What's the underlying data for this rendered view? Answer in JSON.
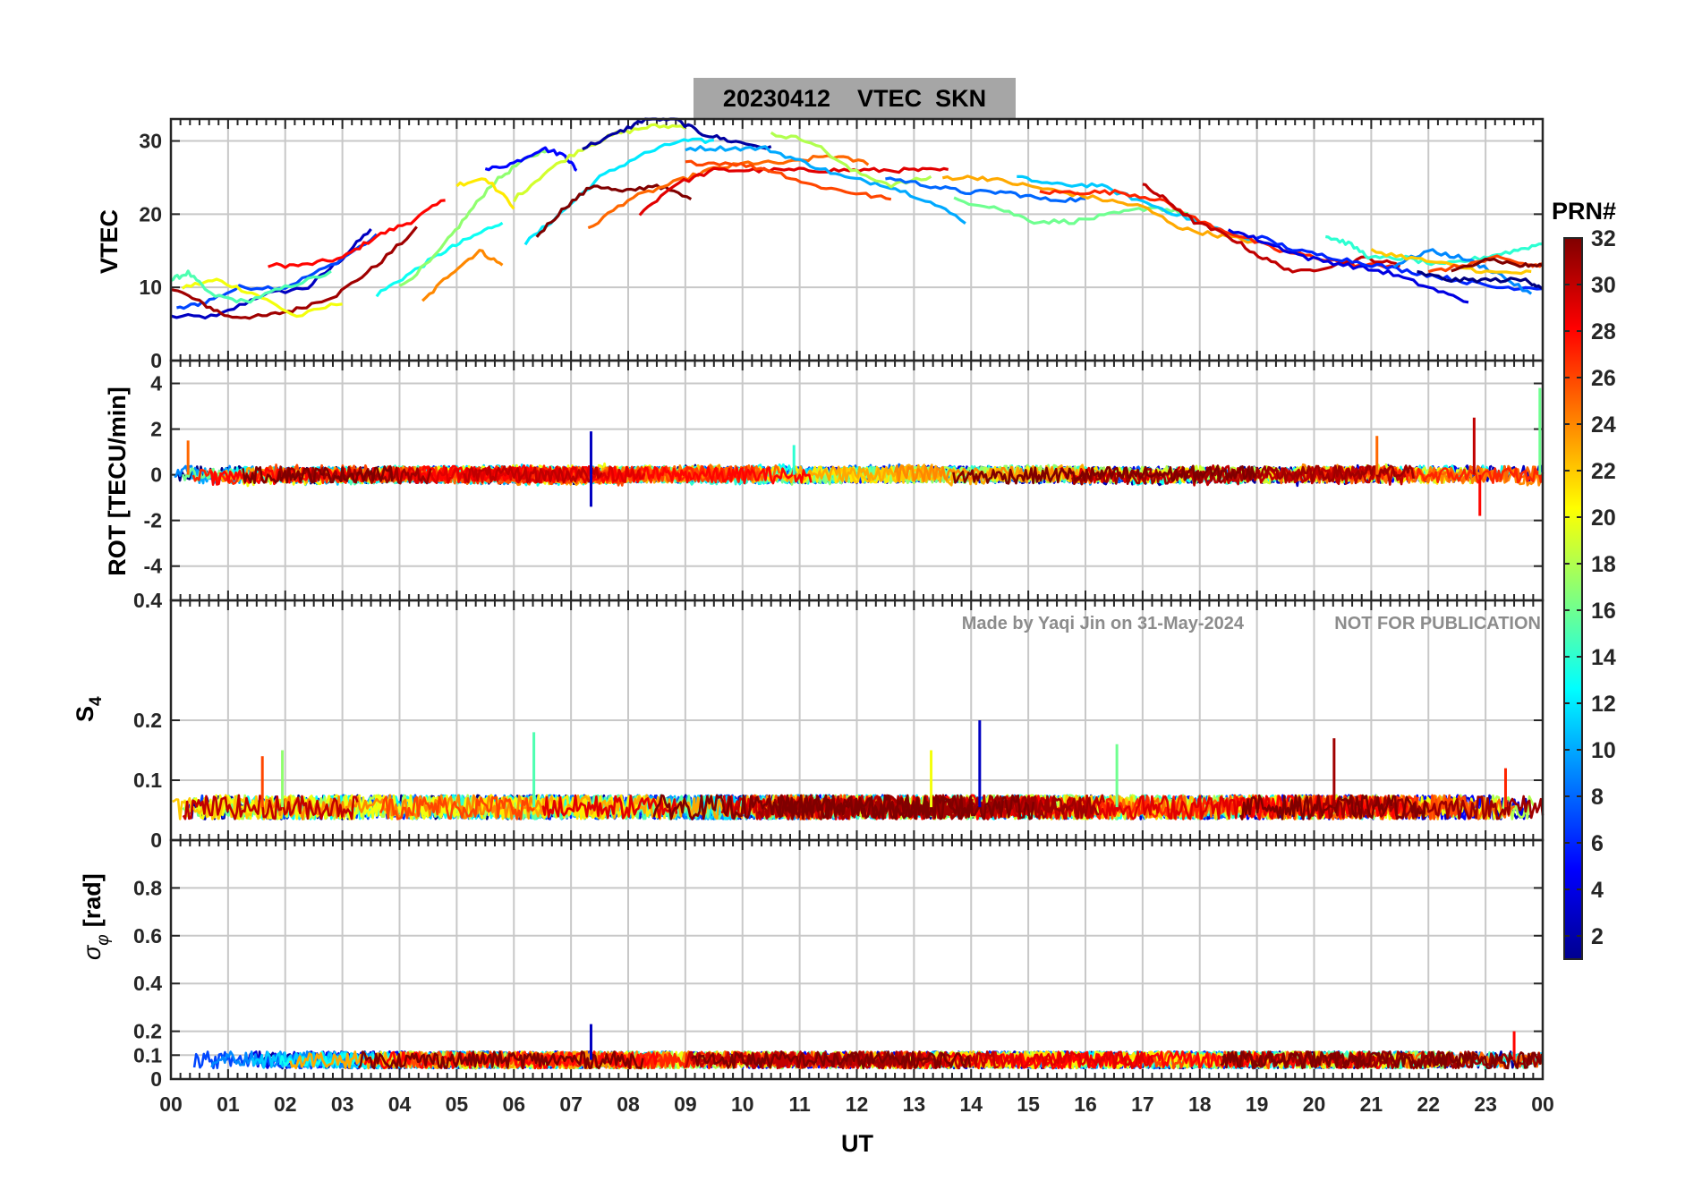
{
  "figure": {
    "title": "20230412    VTEC  SKN",
    "watermark": "Made by Yaqi Jin on 31-May-2024",
    "notice": "NOT FOR PUBLICATION",
    "xlabel": "UT",
    "colors": {
      "title_box": "#a6a6a6",
      "grid": "#c8c8c8",
      "axis": "#262626",
      "watermark": "#8c8c8c"
    }
  },
  "chart_data": [
    {
      "id": "vtec",
      "type": "line",
      "ylabel": "VTEC",
      "ylim": [
        0,
        33
      ],
      "yticks": [
        "0",
        "10",
        "20",
        "30"
      ],
      "ytick_values": [
        0,
        10,
        20,
        30
      ],
      "xlim": [
        0,
        24
      ],
      "xticks": [
        "00",
        "01",
        "02",
        "03",
        "04",
        "05",
        "06",
        "07",
        "08",
        "09",
        "10",
        "11",
        "12",
        "13",
        "14",
        "15",
        "16",
        "17",
        "18",
        "19",
        "20",
        "21",
        "22",
        "23",
        "00"
      ],
      "grid": true,
      "series": [
        {
          "prn": 3,
          "x": [
            0.0,
            0.8,
            1.6,
            2.4,
            3.0,
            3.5
          ],
          "y": [
            6,
            6,
            9,
            10,
            14,
            18
          ]
        },
        {
          "prn": 7,
          "x": [
            0.1,
            0.6,
            1.2,
            2.0,
            2.8,
            3.6
          ],
          "y": [
            7,
            8,
            10,
            10,
            13,
            17
          ]
        },
        {
          "prn": 28,
          "x": [
            1.7,
            2.3,
            3.0,
            3.6,
            4.2,
            4.8
          ],
          "y": [
            13,
            13,
            14,
            17,
            19,
            22
          ]
        },
        {
          "prn": 31,
          "x": [
            0.0,
            0.5,
            1.0,
            1.6,
            2.2,
            2.9,
            3.6,
            4.3
          ],
          "y": [
            10,
            8,
            6,
            6,
            7,
            9,
            13,
            18
          ]
        },
        {
          "prn": 20,
          "x": [
            0.2,
            0.8,
            1.5,
            2.2,
            3.0
          ],
          "y": [
            10,
            11,
            9,
            6,
            8
          ]
        },
        {
          "prn": 15,
          "x": [
            0.0,
            0.3,
            0.7,
            1.3,
            2.0,
            2.8
          ],
          "y": [
            11,
            12,
            9,
            8,
            10,
            12
          ]
        },
        {
          "prn": 24,
          "x": [
            4.4,
            4.9,
            5.4,
            5.8
          ],
          "y": [
            8,
            12,
            15,
            13
          ]
        },
        {
          "prn": 13,
          "x": [
            3.6,
            4.2,
            4.8,
            5.3,
            5.8
          ],
          "y": [
            9,
            12,
            15,
            17,
            19
          ]
        },
        {
          "prn": 17,
          "x": [
            4.0,
            4.6,
            5.1,
            5.6,
            6.1,
            6.6
          ],
          "y": [
            10,
            14,
            19,
            24,
            27,
            29
          ]
        },
        {
          "prn": 5,
          "x": [
            5.5,
            6.0,
            6.5,
            6.9,
            7.1
          ],
          "y": [
            26,
            27,
            29,
            28,
            26
          ]
        },
        {
          "prn": 21,
          "x": [
            5.0,
            5.5,
            6.0
          ],
          "y": [
            24,
            25,
            21
          ]
        },
        {
          "prn": 12,
          "x": [
            6.2,
            6.8,
            7.5,
            8.2,
            8.9,
            9.5
          ],
          "y": [
            16,
            20,
            25,
            28,
            30,
            30
          ]
        },
        {
          "prn": 32,
          "x": [
            6.4,
            6.9,
            7.4,
            7.9,
            8.5,
            9.1
          ],
          "y": [
            17,
            21,
            24,
            23,
            24,
            22
          ]
        },
        {
          "prn": 19,
          "x": [
            6.0,
            6.6,
            7.2,
            7.8,
            8.4,
            9.0
          ],
          "y": [
            22,
            26,
            29,
            31,
            32,
            32
          ]
        },
        {
          "prn": 2,
          "x": [
            7.2,
            7.8,
            8.3,
            8.8,
            9.3,
            9.8,
            10.5
          ],
          "y": [
            29,
            31,
            33,
            33,
            31,
            30,
            29
          ]
        },
        {
          "prn": 25,
          "x": [
            7.3,
            8.0,
            8.7,
            9.4,
            10.1,
            10.8,
            11.5,
            12.2
          ],
          "y": [
            18,
            22,
            24,
            26,
            27,
            27,
            28,
            27
          ]
        },
        {
          "prn": 29,
          "x": [
            8.2,
            8.8,
            9.5,
            10.2,
            10.9,
            11.6,
            12.3,
            13.0,
            13.6
          ],
          "y": [
            20,
            24,
            26,
            26,
            26,
            26,
            26,
            26,
            26
          ]
        },
        {
          "prn": 26,
          "x": [
            9.0,
            9.8,
            10.5,
            11.2,
            11.9,
            12.6
          ],
          "y": [
            27,
            27,
            26,
            24,
            23,
            22
          ]
        },
        {
          "prn": 10,
          "x": [
            9.0,
            9.7,
            10.4,
            11.1,
            11.8,
            12.5,
            13.2,
            13.9
          ],
          "y": [
            29,
            29,
            29,
            27,
            25,
            24,
            22,
            19
          ]
        },
        {
          "prn": 18,
          "x": [
            10.5,
            11.2,
            11.9,
            12.6,
            13.3
          ],
          "y": [
            31,
            30,
            26,
            24,
            25
          ]
        },
        {
          "prn": 8,
          "x": [
            12.5,
            13.2,
            13.9,
            14.6,
            15.3,
            16.0
          ],
          "y": [
            25,
            24,
            23,
            23,
            22,
            22
          ]
        },
        {
          "prn": 16,
          "x": [
            13.7,
            14.4,
            15.1,
            15.8,
            16.5,
            17.2,
            17.8
          ],
          "y": [
            22,
            21,
            19,
            19,
            20,
            21,
            20
          ]
        },
        {
          "prn": 11,
          "x": [
            14.8,
            15.5,
            16.2,
            16.9,
            17.6,
            18.3,
            19.0
          ],
          "y": [
            25,
            24,
            24,
            22,
            20,
            18,
            16
          ]
        },
        {
          "prn": 23,
          "x": [
            13.5,
            14.2,
            14.9,
            15.6,
            16.3,
            17.0,
            17.7,
            18.4,
            19.1
          ],
          "y": [
            25,
            25,
            24,
            23,
            22,
            21,
            18,
            17,
            16
          ]
        },
        {
          "prn": 27,
          "x": [
            15.2,
            15.9,
            16.6,
            17.3,
            18.0,
            18.7,
            19.4,
            20.1,
            20.8,
            21.5
          ],
          "y": [
            23,
            23,
            23,
            22,
            19,
            17,
            15,
            14,
            13,
            13
          ]
        },
        {
          "prn": 30,
          "x": [
            17.0,
            17.4,
            17.9,
            18.5,
            19.1,
            19.7,
            20.3,
            20.9,
            21.5
          ],
          "y": [
            24,
            22,
            19,
            17,
            14,
            12,
            13,
            14,
            13
          ]
        },
        {
          "prn": 4,
          "x": [
            18.5,
            19.2,
            19.9,
            20.6,
            21.3,
            22.0,
            22.7
          ],
          "y": [
            18,
            16,
            14,
            13,
            12,
            10,
            8
          ]
        },
        {
          "prn": 6,
          "x": [
            19.0,
            19.7,
            20.4,
            21.1,
            21.8,
            22.5,
            23.2,
            24.0
          ],
          "y": [
            17,
            15,
            14,
            13,
            12,
            11,
            10,
            10
          ]
        },
        {
          "prn": 14,
          "x": [
            20.2,
            20.6,
            21.0,
            21.6,
            22.2,
            22.9,
            23.5,
            24.0
          ],
          "y": [
            17,
            16,
            14,
            14,
            13,
            14,
            15,
            16
          ]
        },
        {
          "prn": 9,
          "x": [
            21.4,
            22.0,
            22.6,
            23.2,
            23.8
          ],
          "y": [
            13,
            15,
            14,
            12,
            9
          ]
        },
        {
          "prn": 22,
          "x": [
            21.0,
            21.7,
            22.4,
            23.1,
            23.8
          ],
          "y": [
            15,
            14,
            13,
            12,
            12
          ]
        },
        {
          "prn": 1,
          "x": [
            21.8,
            22.4,
            23.0,
            23.7,
            24.0
          ],
          "y": [
            12,
            11,
            11,
            11,
            10
          ]
        },
        {
          "prn": 26,
          "x": [
            22.0,
            22.6,
            23.2,
            23.8,
            24.0
          ],
          "y": [
            12,
            13,
            14,
            13,
            13
          ]
        },
        {
          "prn": 32,
          "x": [
            22.4,
            23.0,
            23.6,
            24.0
          ],
          "y": [
            12,
            14,
            13,
            13
          ]
        }
      ]
    },
    {
      "id": "rot",
      "type": "line",
      "ylabel": "ROT [TECU/min]",
      "ylim": [
        -5.5,
        5
      ],
      "yticks": [
        "-4",
        "-2",
        "0",
        "2",
        "4"
      ],
      "ytick_values": [
        -4,
        -2,
        0,
        2,
        4
      ],
      "xlim": [
        0,
        24
      ],
      "grid": true,
      "baseline": 0,
      "noise_amplitude": 0.35,
      "spikes": [
        {
          "x": 0.3,
          "y": 1.5,
          "prn": 25
        },
        {
          "x": 7.35,
          "y": 1.9,
          "prn": 3
        },
        {
          "x": 7.35,
          "y": -1.4,
          "prn": 3
        },
        {
          "x": 10.9,
          "y": 1.3,
          "prn": 14
        },
        {
          "x": 21.1,
          "y": 1.7,
          "prn": 25
        },
        {
          "x": 22.8,
          "y": 2.5,
          "prn": 30
        },
        {
          "x": 22.9,
          "y": -1.8,
          "prn": 28
        },
        {
          "x": 23.95,
          "y": 3.8,
          "prn": 16
        }
      ]
    },
    {
      "id": "s4",
      "type": "line",
      "ylabel_main": "S",
      "ylabel_sub": "4",
      "ylim": [
        0,
        0.4
      ],
      "yticks": [
        "0",
        "0.1",
        "0.2",
        "0.4"
      ],
      "ytick_values": [
        0,
        0.1,
        0.2,
        0.4
      ],
      "xlim": [
        0,
        24
      ],
      "grid": true,
      "baseline": 0.055,
      "noise_amplitude": 0.02,
      "spikes": [
        {
          "x": 1.6,
          "y": 0.14,
          "prn": 26
        },
        {
          "x": 1.95,
          "y": 0.15,
          "prn": 17
        },
        {
          "x": 6.35,
          "y": 0.18,
          "prn": 15
        },
        {
          "x": 13.3,
          "y": 0.15,
          "prn": 20
        },
        {
          "x": 14.15,
          "y": 0.2,
          "prn": 3
        },
        {
          "x": 16.55,
          "y": 0.16,
          "prn": 16
        },
        {
          "x": 20.35,
          "y": 0.17,
          "prn": 31
        },
        {
          "x": 23.35,
          "y": 0.12,
          "prn": 27
        }
      ]
    },
    {
      "id": "sigma_phi",
      "type": "line",
      "ylabel_main": "σ",
      "ylabel_sub": "φ",
      "ylabel_unit": "[rad]",
      "ylim": [
        0,
        1
      ],
      "yticks": [
        "0",
        "0.1",
        "0.2",
        "0.4",
        "0.6",
        "0.8"
      ],
      "ytick_values": [
        0,
        0.1,
        0.2,
        0.4,
        0.6,
        0.8
      ],
      "xlim": [
        0,
        24
      ],
      "grid": true,
      "baseline": 0.08,
      "noise_amplitude": 0.035,
      "spikes": [
        {
          "x": 7.35,
          "y": 0.23,
          "prn": 3
        },
        {
          "x": 23.5,
          "y": 0.2,
          "prn": 28
        }
      ]
    }
  ],
  "colorbar": {
    "label": "PRN#",
    "range": [
      1,
      32
    ],
    "ticks": [
      "2",
      "4",
      "6",
      "8",
      "10",
      "12",
      "14",
      "16",
      "18",
      "20",
      "22",
      "24",
      "26",
      "28",
      "30",
      "32"
    ],
    "tick_values": [
      2,
      4,
      6,
      8,
      10,
      12,
      14,
      16,
      18,
      20,
      22,
      24,
      26,
      28,
      30,
      32
    ],
    "colormap": "jet"
  }
}
